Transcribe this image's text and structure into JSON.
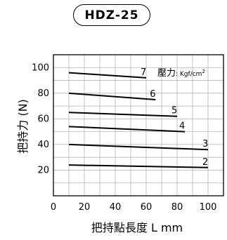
{
  "header": {
    "model": "HDZ-25"
  },
  "chart_data": {
    "type": "line",
    "title": "",
    "xlabel": "把持點長度 L  mm",
    "ylabel": "把持力 (N)",
    "xlim": [
      0,
      110
    ],
    "ylim": [
      0,
      110
    ],
    "xticks": [
      0,
      20,
      40,
      60,
      80,
      100
    ],
    "yticks": [
      20,
      40,
      60,
      80,
      100
    ],
    "grid": true,
    "legend_title": "壓力: Kgf/cm²",
    "legend_title_main": "壓力",
    "legend_title_unit": ": Kgf/cm",
    "legend_title_sup": "2",
    "series": [
      {
        "name": "7",
        "x": [
          10,
          60
        ],
        "values": [
          96,
          92
        ]
      },
      {
        "name": "6",
        "x": [
          10,
          66
        ],
        "values": [
          80,
          75
        ]
      },
      {
        "name": "5",
        "x": [
          10,
          80
        ],
        "values": [
          65,
          62
        ]
      },
      {
        "name": "4",
        "x": [
          10,
          85
        ],
        "values": [
          54,
          50
        ]
      },
      {
        "name": "3",
        "x": [
          10,
          100
        ],
        "values": [
          40,
          36
        ]
      },
      {
        "name": "2",
        "x": [
          10,
          100
        ],
        "values": [
          24,
          22
        ]
      }
    ]
  }
}
